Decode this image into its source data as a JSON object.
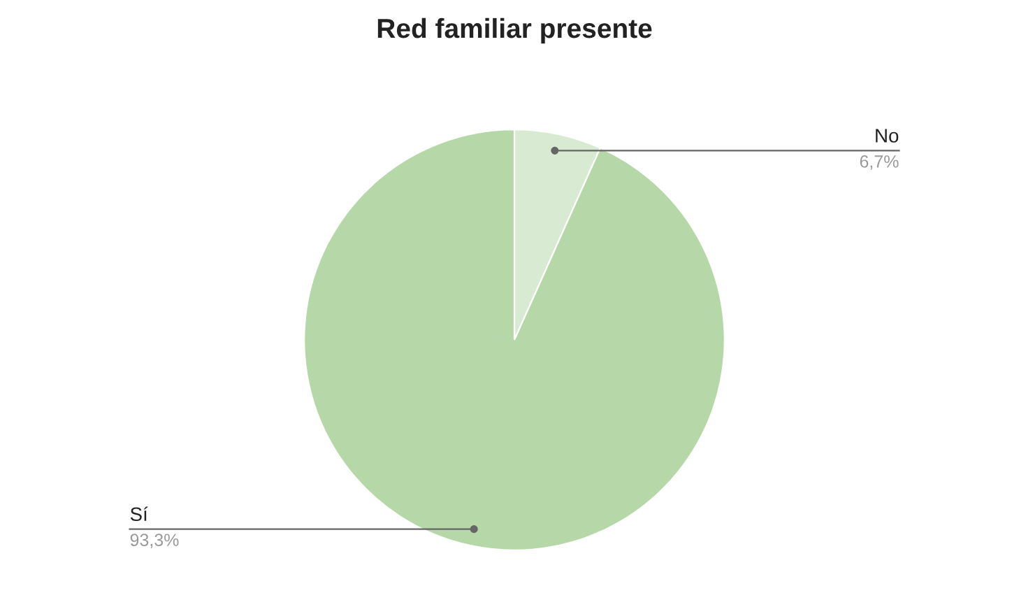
{
  "chart_data": {
    "type": "pie",
    "title": "Red familiar presente",
    "categories": [
      "No",
      "Sí"
    ],
    "values": [
      6.7,
      93.3
    ],
    "colors": [
      "#d9ead3",
      "#b6d7a8"
    ],
    "value_labels": [
      "6,7%",
      "93,3%"
    ]
  }
}
